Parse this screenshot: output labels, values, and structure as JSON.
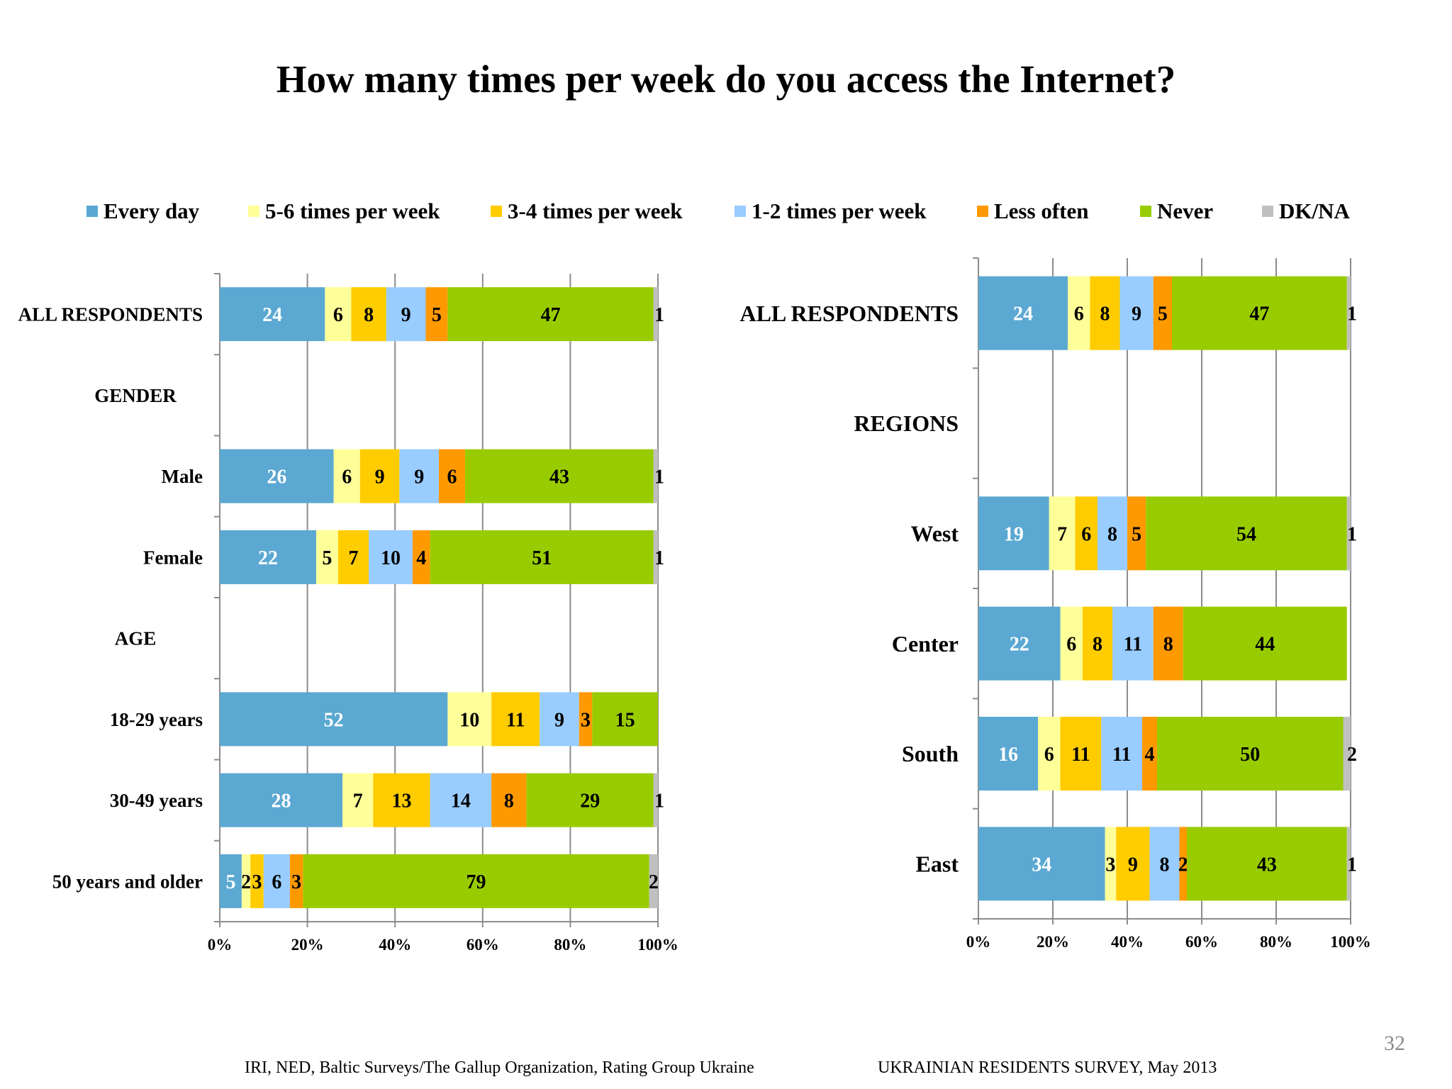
{
  "title": "How many times per week do you access the Internet?",
  "legend": [
    {
      "label": "Every day",
      "color": "#5BA8D2"
    },
    {
      "label": "5-6 times per week",
      "color": "#FFFF99"
    },
    {
      "label": "3-4 times per week",
      "color": "#FFCC00"
    },
    {
      "label": "1-2 times per week",
      "color": "#99CCFF"
    },
    {
      "label": "Less often",
      "color": "#FF9900"
    },
    {
      "label": "Never",
      "color": "#99CC00"
    },
    {
      "label": "DK/NA",
      "color": "#C0C0C0"
    }
  ],
  "chart_data": [
    {
      "type": "bar",
      "orientation": "horizontal",
      "stacked": true,
      "xlim": [
        0,
        100
      ],
      "x_ticks": [
        "0%",
        "20%",
        "40%",
        "60%",
        "80%",
        "100%"
      ],
      "grid": true,
      "legend_position": "top",
      "categories": [
        "ALL RESPONDENTS",
        "GENDER",
        "Male",
        "Female",
        "AGE",
        "18-29 years",
        "30-49 years",
        "50 years and older"
      ],
      "series": [
        {
          "name": "Every day",
          "values": [
            24,
            null,
            26,
            22,
            null,
            52,
            28,
            5
          ]
        },
        {
          "name": "5-6 times per week",
          "values": [
            6,
            null,
            6,
            5,
            null,
            10,
            7,
            2
          ]
        },
        {
          "name": "3-4 times per week",
          "values": [
            8,
            null,
            9,
            7,
            null,
            11,
            13,
            3
          ]
        },
        {
          "name": "1-2 times per week",
          "values": [
            9,
            null,
            9,
            10,
            null,
            9,
            14,
            6
          ]
        },
        {
          "name": "Less often",
          "values": [
            5,
            null,
            6,
            4,
            null,
            3,
            8,
            3
          ]
        },
        {
          "name": "Never",
          "values": [
            47,
            null,
            43,
            51,
            null,
            15,
            29,
            79
          ]
        },
        {
          "name": "DK/NA",
          "values": [
            1,
            null,
            1,
            1,
            null,
            null,
            1,
            2
          ]
        }
      ]
    },
    {
      "type": "bar",
      "orientation": "horizontal",
      "stacked": true,
      "xlim": [
        0,
        100
      ],
      "x_ticks": [
        "0%",
        "20%",
        "40%",
        "60%",
        "80%",
        "100%"
      ],
      "grid": true,
      "legend_position": "top",
      "categories": [
        "ALL RESPONDENTS",
        "REGIONS",
        "West",
        "Center",
        "South",
        "East"
      ],
      "series": [
        {
          "name": "Every day",
          "values": [
            24,
            null,
            19,
            22,
            16,
            34
          ]
        },
        {
          "name": "5-6 times per week",
          "values": [
            6,
            null,
            7,
            6,
            6,
            3
          ]
        },
        {
          "name": "3-4 times per week",
          "values": [
            8,
            null,
            6,
            8,
            11,
            9
          ]
        },
        {
          "name": "1-2 times per week",
          "values": [
            9,
            null,
            8,
            11,
            11,
            8
          ]
        },
        {
          "name": "Less often",
          "values": [
            5,
            null,
            5,
            8,
            4,
            2
          ]
        },
        {
          "name": "Never",
          "values": [
            47,
            null,
            54,
            44,
            50,
            43
          ]
        },
        {
          "name": "DK/NA",
          "values": [
            1,
            null,
            1,
            null,
            2,
            1
          ]
        }
      ]
    }
  ],
  "footer": {
    "source": "IRI, NED,  Baltic Surveys/The Gallup Organization, Rating Group Ukraine",
    "survey": "UKRAINIAN RESIDENTS SURVEY, May  2013",
    "page_number": "32"
  }
}
